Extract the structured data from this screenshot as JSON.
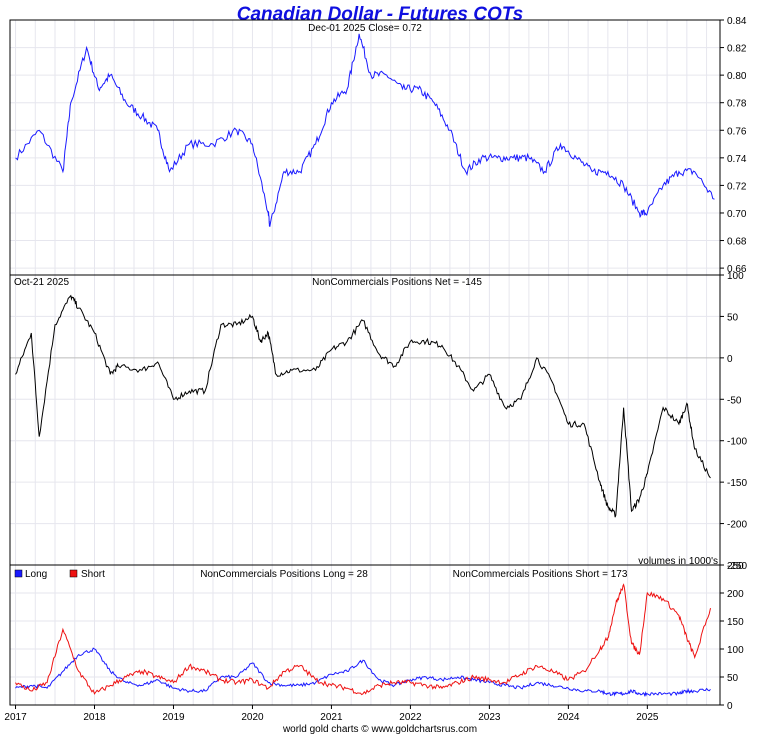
{
  "title": "Canadian Dollar - Futures COTs",
  "footer": "world gold charts © www.goldchartsrus.com",
  "colors": {
    "title": "#1010e0",
    "price_line": "#1a1aff",
    "net_line": "#000000",
    "long": "#1a1aff",
    "short": "#ee1111",
    "grid": "#e6e6ee",
    "frame": "#000000"
  },
  "chart_data": [
    {
      "type": "line",
      "panel": "price",
      "label": "Dec-01  2025   Close= 0.72",
      "ylim": [
        0.655,
        0.84
      ],
      "y_ticks": [
        "0.84",
        "0.82",
        "0.80",
        "0.78",
        "0.76",
        "0.74",
        "0.72",
        "0.70",
        "0.68",
        "0.66"
      ],
      "x": [
        2017.0,
        2017.3,
        2017.6,
        2017.7,
        2017.9,
        2018.05,
        2018.2,
        2018.4,
        2018.6,
        2018.8,
        2018.95,
        2019.2,
        2019.5,
        2019.8,
        2020.0,
        2020.2,
        2020.22,
        2020.4,
        2020.6,
        2020.8,
        2021.0,
        2021.2,
        2021.35,
        2021.5,
        2021.7,
        2021.9,
        2022.1,
        2022.3,
        2022.5,
        2022.7,
        2022.9,
        2023.1,
        2023.3,
        2023.5,
        2023.7,
        2023.9,
        2024.1,
        2024.3,
        2024.5,
        2024.7,
        2024.9,
        2025.0,
        2025.2,
        2025.4,
        2025.6,
        2025.85
      ],
      "series": [
        {
          "name": "Canadian Dollar",
          "values": [
            0.74,
            0.76,
            0.73,
            0.78,
            0.82,
            0.79,
            0.8,
            0.78,
            0.77,
            0.76,
            0.73,
            0.75,
            0.75,
            0.76,
            0.75,
            0.7,
            0.69,
            0.73,
            0.73,
            0.75,
            0.78,
            0.79,
            0.83,
            0.8,
            0.8,
            0.79,
            0.79,
            0.78,
            0.76,
            0.73,
            0.74,
            0.74,
            0.74,
            0.74,
            0.73,
            0.75,
            0.74,
            0.73,
            0.73,
            0.72,
            0.7,
            0.7,
            0.72,
            0.73,
            0.73,
            0.71
          ]
        }
      ]
    },
    {
      "type": "line",
      "panel": "net",
      "label_left": "Oct-21  2025",
      "label": "NonCommercials Positions Net = -145",
      "note": "volumes in 1000's",
      "ylim": [
        -250,
        100
      ],
      "y_ticks": [
        "100",
        "50",
        "0",
        "-50",
        "-100",
        "-150",
        "-200",
        "-250"
      ],
      "x": [
        2017.0,
        2017.2,
        2017.3,
        2017.5,
        2017.7,
        2017.8,
        2018.0,
        2018.2,
        2018.3,
        2018.6,
        2018.8,
        2019.0,
        2019.2,
        2019.4,
        2019.6,
        2019.8,
        2020.0,
        2020.1,
        2020.2,
        2020.3,
        2020.5,
        2020.8,
        2021.0,
        2021.2,
        2021.4,
        2021.6,
        2021.8,
        2022.0,
        2022.2,
        2022.4,
        2022.6,
        2022.8,
        2023.0,
        2023.2,
        2023.4,
        2023.6,
        2023.8,
        2024.0,
        2024.2,
        2024.4,
        2024.5,
        2024.6,
        2024.7,
        2024.8,
        2024.9,
        2025.0,
        2025.2,
        2025.4,
        2025.5,
        2025.6,
        2025.8
      ],
      "series": [
        {
          "name": "Net",
          "values": [
            -20,
            30,
            -95,
            40,
            75,
            60,
            30,
            -20,
            -10,
            -15,
            -5,
            -50,
            -40,
            -40,
            40,
            40,
            50,
            20,
            30,
            -20,
            -15,
            -15,
            10,
            20,
            45,
            5,
            -10,
            20,
            20,
            15,
            -10,
            -40,
            -20,
            -60,
            -50,
            0,
            -30,
            -80,
            -80,
            -150,
            -180,
            -190,
            -60,
            -185,
            -170,
            -140,
            -60,
            -80,
            -55,
            -110,
            -145
          ]
        }
      ]
    },
    {
      "type": "line",
      "panel": "long_short",
      "label": "NonCommercials Positions Long = 28",
      "label2": "NonCommercials Positions Short = 173",
      "legend": [
        "Long",
        "Short"
      ],
      "ylim": [
        0,
        250
      ],
      "y_ticks": [
        "250",
        "200",
        "150",
        "100",
        "50",
        "0"
      ],
      "x_ticks": [
        "2017",
        "2018",
        "2019",
        "2020",
        "2021",
        "2022",
        "2023",
        "2024",
        "2025"
      ],
      "x": [
        2017.0,
        2017.2,
        2017.4,
        2017.6,
        2017.8,
        2018.0,
        2018.2,
        2018.4,
        2018.6,
        2018.8,
        2019.0,
        2019.2,
        2019.4,
        2019.6,
        2019.8,
        2020.0,
        2020.2,
        2020.4,
        2020.6,
        2020.8,
        2021.0,
        2021.2,
        2021.4,
        2021.6,
        2021.8,
        2022.0,
        2022.2,
        2022.4,
        2022.6,
        2022.8,
        2023.0,
        2023.2,
        2023.4,
        2023.6,
        2023.8,
        2024.0,
        2024.2,
        2024.4,
        2024.5,
        2024.6,
        2024.7,
        2024.8,
        2024.9,
        2025.0,
        2025.2,
        2025.4,
        2025.5,
        2025.6,
        2025.8
      ],
      "series": [
        {
          "name": "Long",
          "values": [
            30,
            35,
            30,
            60,
            90,
            100,
            60,
            40,
            35,
            45,
            30,
            25,
            25,
            50,
            50,
            75,
            40,
            35,
            35,
            40,
            55,
            60,
            80,
            45,
            35,
            45,
            50,
            45,
            50,
            45,
            40,
            35,
            30,
            40,
            35,
            30,
            25,
            25,
            20,
            20,
            20,
            25,
            20,
            20,
            20,
            20,
            25,
            25,
            28
          ]
        },
        {
          "name": "Short",
          "values": [
            40,
            25,
            40,
            135,
            60,
            20,
            35,
            50,
            60,
            50,
            40,
            70,
            60,
            45,
            40,
            45,
            30,
            60,
            70,
            45,
            35,
            30,
            20,
            35,
            40,
            40,
            35,
            30,
            40,
            50,
            45,
            40,
            55,
            70,
            60,
            45,
            60,
            100,
            120,
            180,
            215,
            110,
            90,
            200,
            190,
            160,
            120,
            85,
            173
          ]
        }
      ]
    }
  ]
}
